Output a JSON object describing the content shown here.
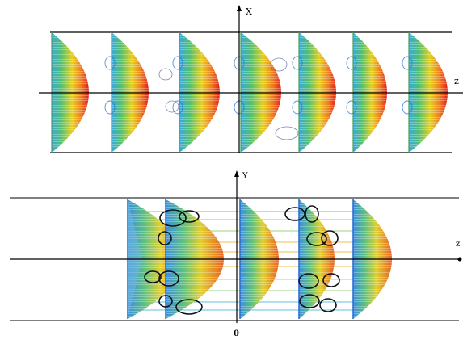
{
  "figure": {
    "top_panel": {
      "axis_vertical_label": "X",
      "axis_horizontal_label": "z",
      "profile_count": 7
    },
    "bottom_panel": {
      "axis_vertical_label": "Y",
      "axis_horizontal_label": "z",
      "origin_label": "0",
      "profile_count": 6
    },
    "colors": {
      "high_velocity": "#e0201a",
      "mid_velocity": "#e8d020",
      "low_velocity": "#40c060",
      "wall_velocity": "#3070d0",
      "vortex_line": "#101018",
      "axis_line": "#000000"
    }
  }
}
